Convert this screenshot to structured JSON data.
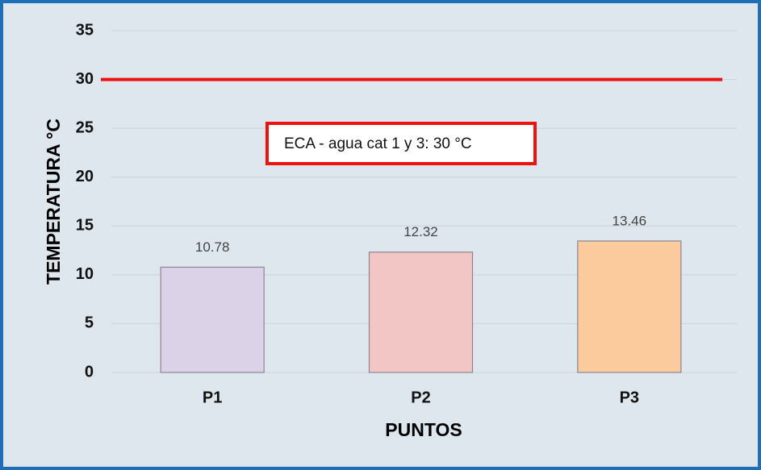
{
  "chart_data": {
    "type": "bar",
    "categories": [
      "P1",
      "P2",
      "P3"
    ],
    "values": [
      10.78,
      12.32,
      13.46
    ],
    "colors": [
      "#dcd2e8",
      "#f3c6c6",
      "#fbcb9e"
    ],
    "ylim": [
      0,
      35
    ],
    "yticks": [
      0,
      5,
      10,
      15,
      20,
      25,
      30,
      35
    ],
    "grid": true,
    "ylabel": "TEMPERATURA °C",
    "xlabel": "PUNTOS",
    "reference_line": {
      "value": 30,
      "color": "#ee1111"
    },
    "annotation": "ECA -  agua cat 1 y 3: 30 °C"
  }
}
